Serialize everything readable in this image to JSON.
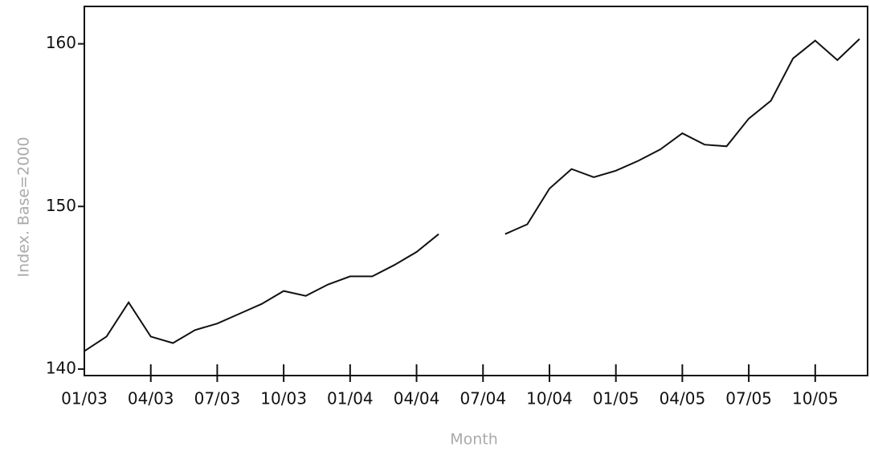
{
  "chart_data": {
    "type": "line",
    "x_label": "Month",
    "y_label": "Index. Base=2000",
    "categories": [
      "01/03",
      null,
      null,
      "04/03",
      null,
      null,
      "07/03",
      null,
      null,
      "10/03",
      null,
      null,
      "01/04",
      null,
      null,
      "04/04",
      null,
      null,
      "07/04",
      null,
      null,
      "10/04",
      null,
      null,
      "01/05",
      null,
      null,
      "04/05",
      null,
      null,
      "07/05",
      null,
      null,
      "10/05",
      null,
      null
    ],
    "series": [
      {
        "color": "#111111",
        "values": [
          141.1,
          142.0,
          144.1,
          142.0,
          141.6,
          142.4,
          142.8,
          143.4,
          144.0,
          144.8,
          144.5,
          145.2,
          145.7,
          145.7,
          146.4,
          147.2,
          148.3,
          null,
          null,
          148.3,
          148.9,
          151.1,
          152.3,
          151.8,
          152.2,
          152.8,
          153.5,
          154.5,
          153.8,
          153.7,
          155.4,
          156.5,
          159.1,
          160.2,
          159.0,
          160.3
        ]
      }
    ],
    "ylim": [
      139.6,
      162.3
    ],
    "yticks": [
      140,
      150,
      160
    ]
  }
}
